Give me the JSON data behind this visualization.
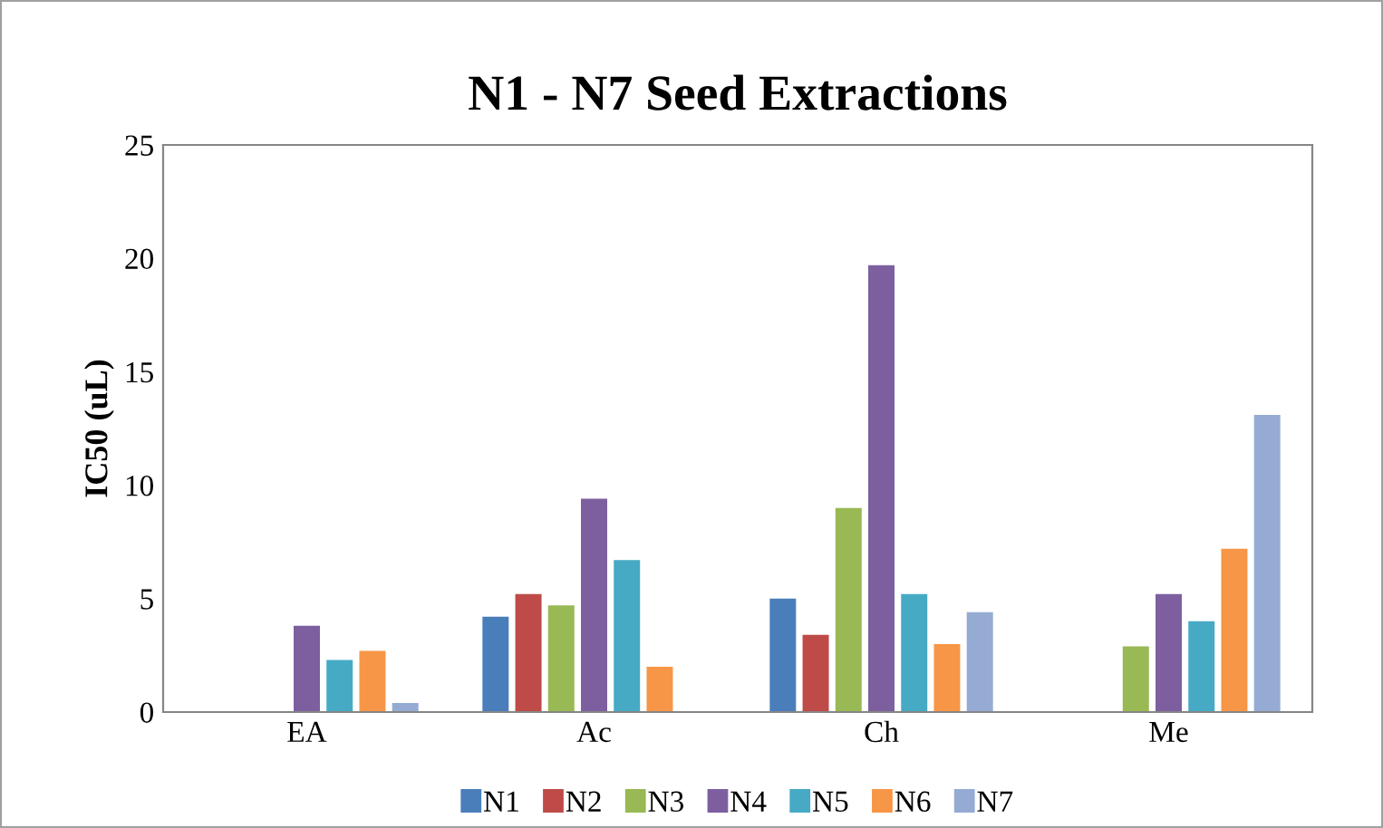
{
  "chart_data": {
    "type": "bar",
    "title": "N1 - N7 Seed Extractions",
    "ylabel": "IC50 (uL)",
    "categories": [
      "EA",
      "Ac",
      "Ch",
      "Me"
    ],
    "series": [
      {
        "name": "N1",
        "color": "#4a7ebb",
        "values": [
          null,
          4.2,
          5.0,
          null
        ]
      },
      {
        "name": "N2",
        "color": "#be4b48",
        "values": [
          null,
          5.2,
          3.4,
          null
        ]
      },
      {
        "name": "N3",
        "color": "#98b954",
        "values": [
          null,
          4.7,
          9.0,
          2.9
        ]
      },
      {
        "name": "N4",
        "color": "#7d5fa0",
        "values": [
          3.8,
          9.4,
          19.7,
          5.2
        ]
      },
      {
        "name": "N5",
        "color": "#46aac5",
        "values": [
          2.3,
          6.7,
          5.2,
          4.0
        ]
      },
      {
        "name": "N6",
        "color": "#f79646",
        "values": [
          2.7,
          2.0,
          3.0,
          7.2
        ]
      },
      {
        "name": "N7",
        "color": "#95abd3",
        "values": [
          0.4,
          null,
          4.4,
          13.1
        ]
      }
    ],
    "ylim": [
      0,
      25
    ],
    "yticks": [
      0,
      5,
      10,
      15,
      20,
      25
    ],
    "grid": false,
    "legend": "bottom"
  }
}
